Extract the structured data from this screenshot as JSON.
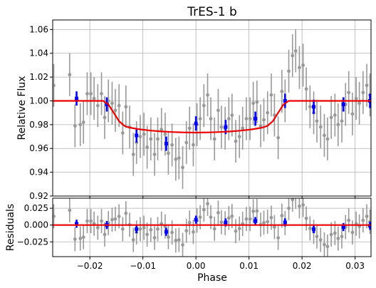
{
  "chart_data": {
    "type": "scatter",
    "title": "TrES-1 b",
    "xlabel": "Phase",
    "colors": {
      "raw": "#999999",
      "binned": "#0000ff",
      "model": "#ee0000",
      "grid": "#b0b0b0"
    },
    "xlim": [
      -0.027,
      0.033
    ],
    "xticks": [
      -0.02,
      -0.01,
      0.0,
      0.01,
      0.02,
      0.03
    ],
    "xtick_labels": [
      "−0.02",
      "−0.01",
      "0.00",
      "0.01",
      "0.02",
      "0.03"
    ],
    "panels": [
      {
        "name": "flux",
        "ylabel": "Relative Flux",
        "ylim": [
          0.92,
          1.068
        ],
        "yticks": [
          0.92,
          0.94,
          0.96,
          0.98,
          1.0,
          1.02,
          1.04,
          1.06
        ],
        "ytick_labels": [
          "0.92",
          "0.94",
          "0.96",
          "0.98",
          "1.00",
          "1.02",
          "1.04",
          "1.06"
        ],
        "grid": true,
        "raw_error": 0.018,
        "raw_x": [
          -0.0268,
          -0.0238,
          -0.0228,
          -0.0218,
          -0.0212,
          -0.0205,
          -0.0198,
          -0.0192,
          -0.0185,
          -0.0178,
          -0.0172,
          -0.0165,
          -0.0158,
          -0.0152,
          -0.0145,
          -0.0138,
          -0.0132,
          -0.0125,
          -0.0118,
          -0.0112,
          -0.0105,
          -0.0098,
          -0.0092,
          -0.0085,
          -0.0078,
          -0.0072,
          -0.0065,
          -0.0058,
          -0.0052,
          -0.0045,
          -0.0038,
          -0.0032,
          -0.0025,
          -0.0018,
          -0.0012,
          -0.0005,
          0.0002,
          0.0008,
          0.0015,
          0.0022,
          0.0028,
          0.0035,
          0.0042,
          0.0048,
          0.0055,
          0.0062,
          0.0068,
          0.0075,
          0.0082,
          0.0088,
          0.0095,
          0.0102,
          0.0108,
          0.0115,
          0.0122,
          0.0128,
          0.0135,
          0.0142,
          0.0148,
          0.0155,
          0.0162,
          0.0168,
          0.0175,
          0.0182,
          0.0188,
          0.0195,
          0.0202,
          0.0208,
          0.0215,
          0.0222,
          0.0228,
          0.0235,
          0.0242,
          0.0248,
          0.0255,
          0.0262,
          0.0268,
          0.0275,
          0.0282,
          0.0288,
          0.0295,
          0.0302,
          0.0308,
          0.0315,
          0.0322,
          0.0328
        ],
        "raw_y": [
          1.013,
          1.022,
          0.979,
          0.98,
          0.982,
          1.006,
          1.006,
          1.002,
          0.996,
          1.006,
          0.986,
          1.0,
          0.998,
          0.992,
          0.996,
          0.973,
          0.995,
          0.978,
          0.955,
          0.965,
          0.97,
          0.972,
          0.961,
          0.968,
          0.955,
          0.968,
          0.976,
          0.972,
          0.956,
          0.963,
          0.951,
          0.952,
          0.944,
          0.965,
          0.977,
          0.963,
          0.98,
          0.985,
          0.996,
          1.005,
          0.985,
          0.968,
          0.992,
          0.978,
          0.977,
          0.985,
          0.988,
          0.966,
          0.97,
          0.977,
          0.985,
          0.985,
          0.998,
          0.999,
          0.979,
          0.984,
          0.99,
          1.005,
          0.988,
          0.969,
          1.008,
          1.0,
          1.025,
          1.038,
          1.042,
          1.028,
          1.03,
          1.01,
          0.995,
          0.99,
          0.983,
          0.978,
          0.971,
          0.968,
          0.986,
          0.988,
          0.98,
          0.983,
          0.997,
          1.007,
          0.989,
          1.002,
          0.998,
          1.007,
          1.013,
          1.005
        ],
        "binned_x": [
          -0.0225,
          -0.0168,
          -0.0112,
          -0.0056,
          0.0,
          0.0056,
          0.0112,
          0.0168,
          0.0222,
          0.0278,
          0.0328
        ],
        "binned_y": [
          1.002,
          0.997,
          0.971,
          0.964,
          0.981,
          0.978,
          0.985,
          1.0,
          0.995,
          0.997,
          1.0
        ],
        "binned_error": 0.006,
        "model_x": [
          -0.027,
          -0.0175,
          -0.0165,
          -0.0155,
          -0.0145,
          -0.0135,
          -0.0125,
          -0.0105,
          -0.0085,
          -0.0065,
          -0.0045,
          -0.0025,
          0.0,
          0.0025,
          0.0045,
          0.0065,
          0.0085,
          0.0105,
          0.0125,
          0.0135,
          0.0145,
          0.0155,
          0.0165,
          0.0175,
          0.033
        ],
        "model_y": [
          1.0,
          1.0,
          0.997,
          0.99,
          0.983,
          0.979,
          0.9775,
          0.976,
          0.975,
          0.9743,
          0.9738,
          0.9735,
          0.9733,
          0.9735,
          0.9738,
          0.9743,
          0.975,
          0.976,
          0.9775,
          0.979,
          0.983,
          0.99,
          0.997,
          1.0,
          1.0
        ]
      },
      {
        "name": "residuals",
        "ylabel": "Residuals",
        "ylim": [
          -0.047,
          0.04
        ],
        "yticks": [
          -0.025,
          0.0,
          0.025
        ],
        "ytick_labels": [
          "−0.025",
          "0.000",
          "0.025"
        ],
        "grid": true,
        "raw_error": 0.018,
        "raw_x": [
          -0.0268,
          -0.0238,
          -0.0228,
          -0.0218,
          -0.0212,
          -0.0205,
          -0.0198,
          -0.0192,
          -0.0185,
          -0.0178,
          -0.0172,
          -0.0165,
          -0.0158,
          -0.0152,
          -0.0145,
          -0.0138,
          -0.0132,
          -0.0125,
          -0.0118,
          -0.0112,
          -0.0105,
          -0.0098,
          -0.0092,
          -0.0085,
          -0.0078,
          -0.0072,
          -0.0065,
          -0.0058,
          -0.0052,
          -0.0045,
          -0.0038,
          -0.0032,
          -0.0025,
          -0.0018,
          -0.0012,
          -0.0005,
          0.0002,
          0.0008,
          0.0015,
          0.0022,
          0.0028,
          0.0035,
          0.0042,
          0.0048,
          0.0055,
          0.0062,
          0.0068,
          0.0075,
          0.0082,
          0.0088,
          0.0095,
          0.0102,
          0.0108,
          0.0115,
          0.0122,
          0.0128,
          0.0135,
          0.0142,
          0.0148,
          0.0155,
          0.0162,
          0.0168,
          0.0175,
          0.0182,
          0.0188,
          0.0195,
          0.0202,
          0.0208,
          0.0215,
          0.0222,
          0.0228,
          0.0235,
          0.0242,
          0.0248,
          0.0255,
          0.0262,
          0.0268,
          0.0275,
          0.0282,
          0.0288,
          0.0295,
          0.0302,
          0.0308,
          0.0315,
          0.0322,
          0.0328
        ],
        "raw_y": [
          0.013,
          0.022,
          -0.021,
          -0.02,
          -0.018,
          0.006,
          0.006,
          0.002,
          -0.004,
          0.006,
          -0.014,
          0.003,
          0.008,
          0.009,
          0.013,
          -0.006,
          0.0175,
          0.0005,
          -0.022,
          -0.011,
          -0.006,
          -0.004,
          -0.014,
          -0.007,
          -0.019,
          -0.006,
          0.002,
          -0.002,
          -0.018,
          -0.011,
          -0.023,
          -0.022,
          -0.0295,
          -0.0085,
          0.0037,
          -0.0103,
          0.0067,
          0.0117,
          0.0227,
          0.0317,
          0.0117,
          -0.0055,
          0.0184,
          0.0042,
          0.0027,
          0.0105,
          0.0133,
          -0.0091,
          -0.0052,
          0.0018,
          0.009,
          0.009,
          0.0205,
          0.021,
          0.0006,
          0.0035,
          0.005,
          0.011,
          -0.003,
          -0.019,
          0.014,
          0.003,
          0.025,
          0.038,
          0.042,
          0.028,
          0.03,
          0.01,
          -0.005,
          -0.01,
          -0.017,
          -0.022,
          -0.029,
          -0.032,
          -0.014,
          -0.012,
          -0.02,
          -0.017,
          -0.003,
          0.007,
          -0.011,
          0.002,
          -0.002,
          0.007,
          0.013,
          0.005
        ],
        "binned_x": [
          -0.0225,
          -0.0168,
          -0.0112,
          -0.0056,
          0.0,
          0.0056,
          0.0112,
          0.0168,
          0.0222,
          0.0278,
          0.0328
        ],
        "binned_y": [
          0.002,
          0.0,
          -0.006,
          -0.01,
          0.008,
          0.004,
          0.006,
          0.004,
          -0.006,
          -0.003,
          -0.001
        ],
        "binned_error": 0.006,
        "model_x": [
          -0.027,
          0.033
        ],
        "model_y": [
          0.0,
          0.0
        ]
      }
    ]
  }
}
